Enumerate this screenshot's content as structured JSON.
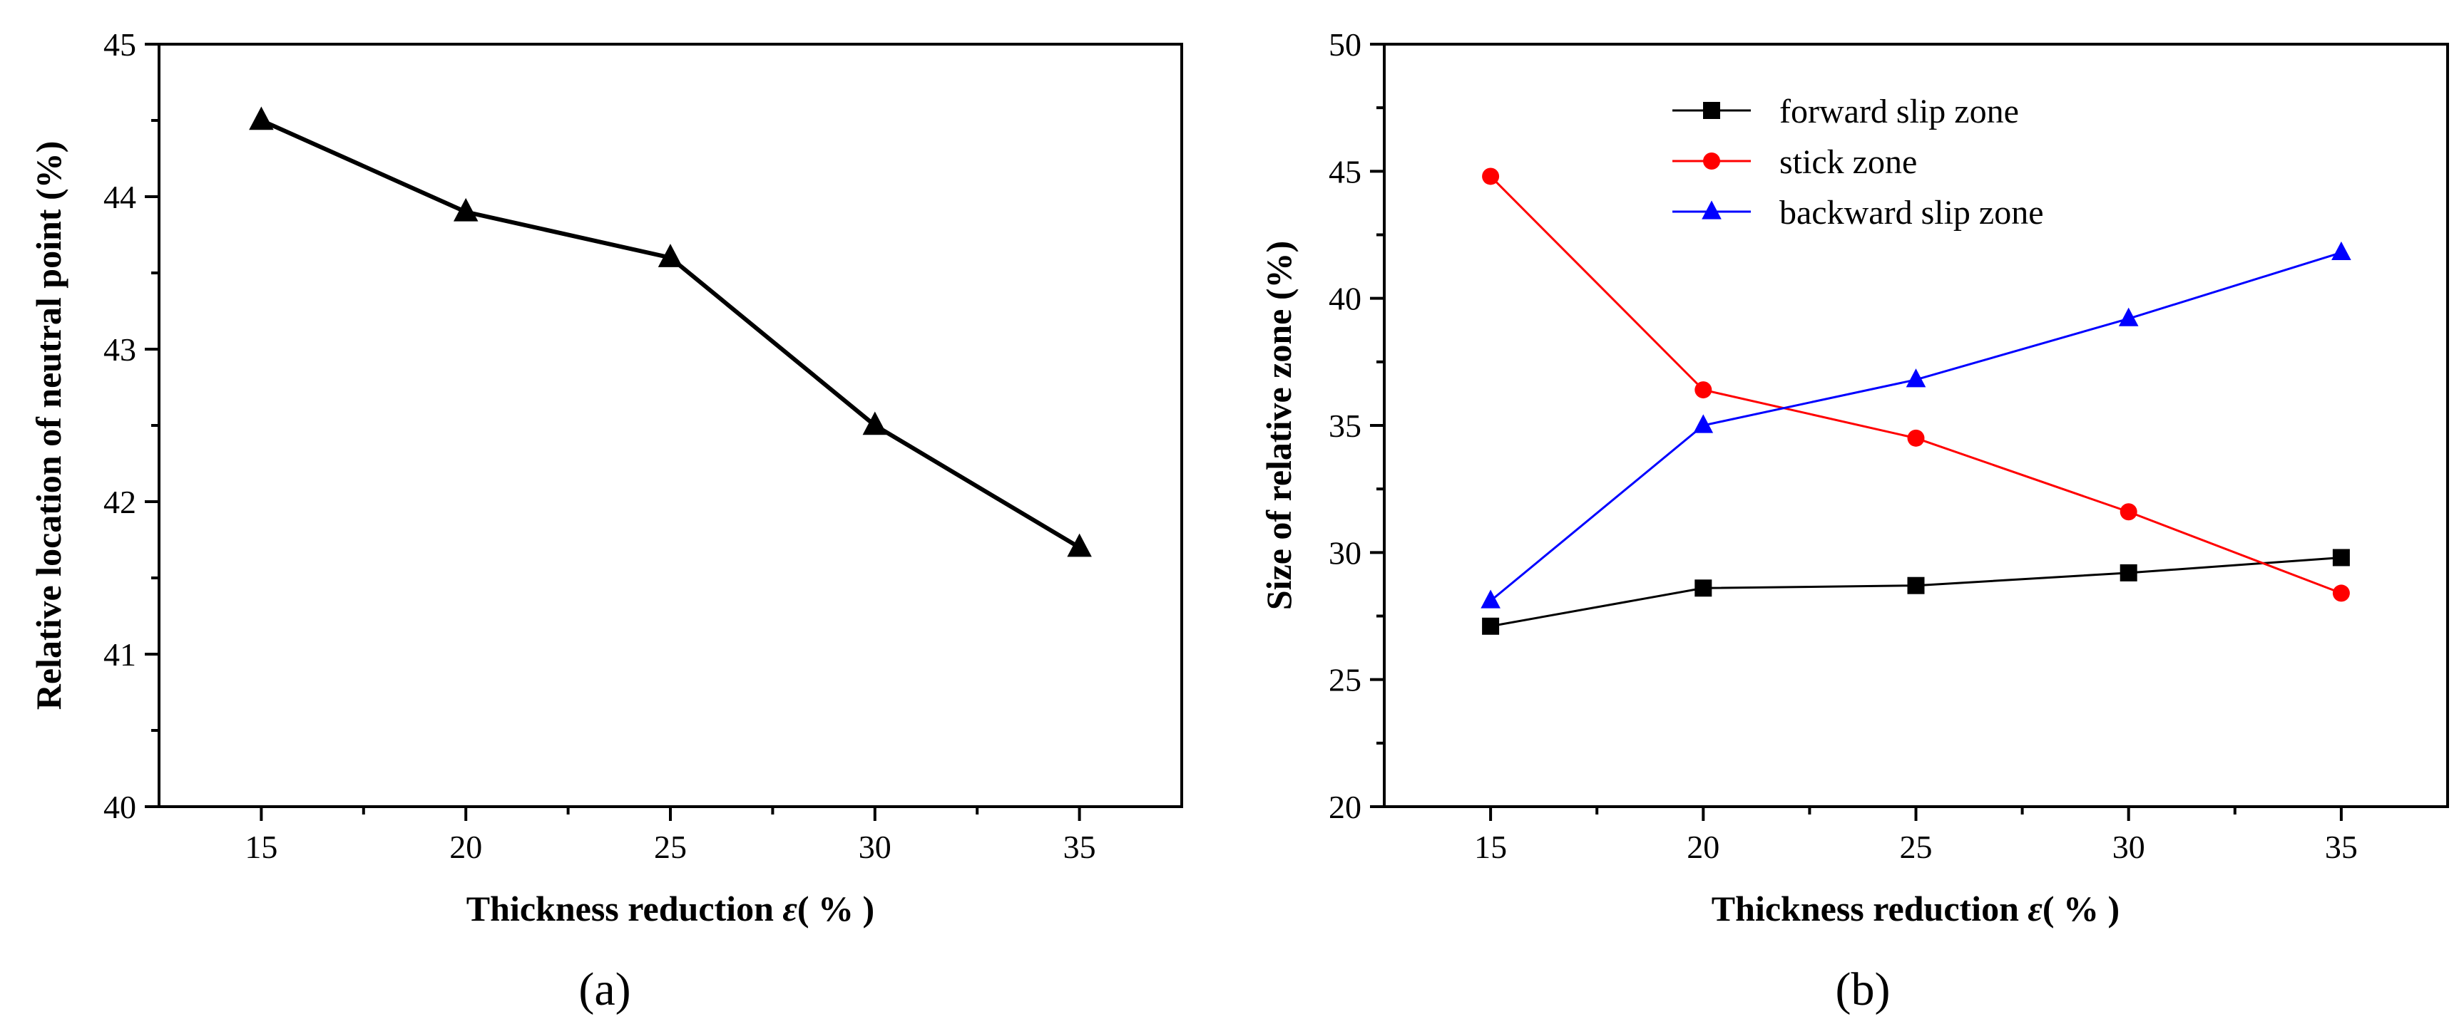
{
  "chart_data": [
    {
      "type": "line",
      "panel_label": "(a)",
      "title": "",
      "xlabel_text": "Thickness reduction ",
      "xlabel_symbol": "ε",
      "xlabel_unit": "( % )",
      "ylabel": "Relative location of neutral point (%)",
      "x": [
        15,
        20,
        25,
        30,
        35
      ],
      "xticks": [
        "15",
        "20",
        "25",
        "30",
        "35"
      ],
      "xlim": [
        12.5,
        37.5
      ],
      "ylim": [
        40,
        45
      ],
      "yticks": [
        "40",
        "41",
        "42",
        "43",
        "44",
        "45"
      ],
      "grid": false,
      "series": [
        {
          "name": "neutral point",
          "color": "#000000",
          "marker": "triangle",
          "values": [
            44.5,
            43.9,
            43.6,
            42.5,
            41.7
          ]
        }
      ]
    },
    {
      "type": "line",
      "panel_label": "(b)",
      "title": "",
      "xlabel_text": "Thickness reduction ",
      "xlabel_symbol": "ε",
      "xlabel_unit": "( % )",
      "ylabel": "Size of relative zone (%)",
      "x": [
        15,
        20,
        25,
        30,
        35
      ],
      "xticks": [
        "15",
        "20",
        "25",
        "30",
        "35"
      ],
      "xlim": [
        12.5,
        37.5
      ],
      "ylim": [
        20,
        50
      ],
      "yticks": [
        "20",
        "25",
        "30",
        "35",
        "40",
        "45",
        "50"
      ],
      "grid": false,
      "legend_position": "top-center",
      "series": [
        {
          "name": "forward slip zone",
          "color": "#000000",
          "marker": "square",
          "values": [
            27.1,
            28.6,
            28.7,
            29.2,
            29.8
          ]
        },
        {
          "name": "stick zone",
          "color": "#ff0000",
          "marker": "circle",
          "values": [
            44.8,
            36.4,
            34.5,
            31.6,
            28.4
          ]
        },
        {
          "name": "backward slip zone",
          "color": "#0000ff",
          "marker": "triangle",
          "values": [
            28.1,
            35.0,
            36.8,
            39.2,
            41.8
          ]
        }
      ]
    }
  ]
}
